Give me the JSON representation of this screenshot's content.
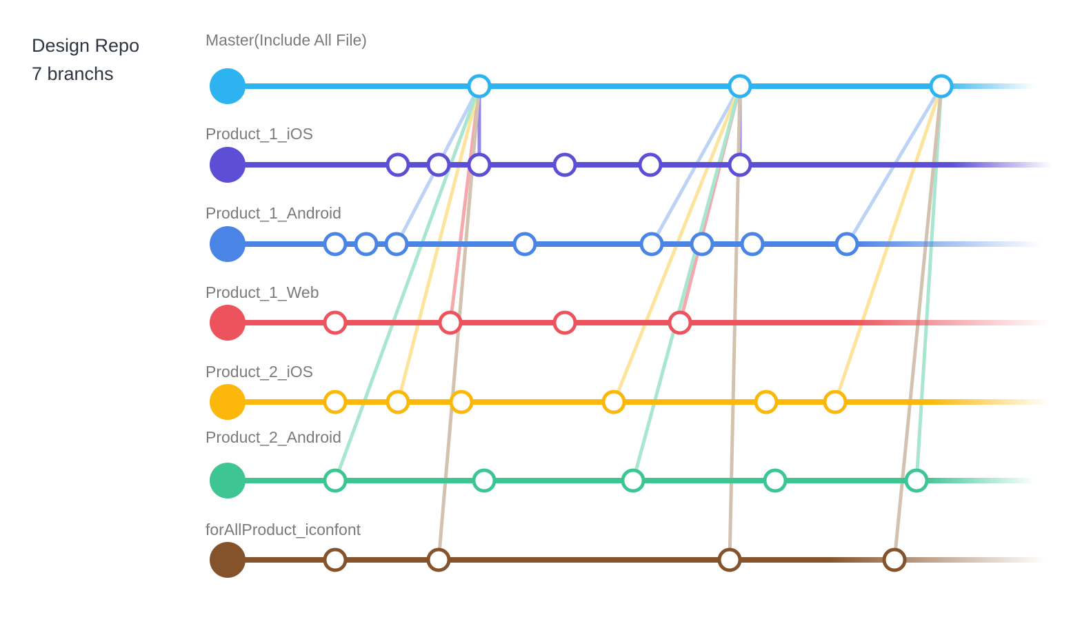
{
  "repo": {
    "title": "Design Repo",
    "subtitle": "7 branchs"
  },
  "branches": [
    {
      "id": "master",
      "label": "Master(Include All File)",
      "color": "#2db3ef"
    },
    {
      "id": "p1ios",
      "label": "Product_1_iOS",
      "color": "#5c4ed5"
    },
    {
      "id": "p1android",
      "label": "Product_1_Android",
      "color": "#4a84e4"
    },
    {
      "id": "p1web",
      "label": "Product_1_Web",
      "color": "#ec535c"
    },
    {
      "id": "p2ios",
      "label": "Product_2_iOS",
      "color": "#fbb80b"
    },
    {
      "id": "p2android",
      "label": "Product_2_Android",
      "color": "#3dc594"
    },
    {
      "id": "iconfont",
      "label": "forAllProduct_iconfont",
      "color": "#85532b"
    }
  ],
  "link_colors": {
    "p1ios": "#9287e8",
    "p1android": "#bcd3f5",
    "p1web": "#f5a9ad",
    "p2ios": "#fde49c",
    "p2android": "#a8e6cf",
    "iconfont": "#d4c2b1"
  }
}
